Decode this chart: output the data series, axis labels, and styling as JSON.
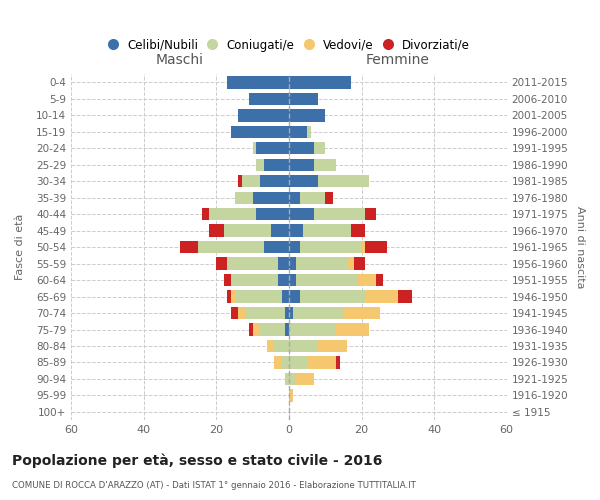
{
  "age_groups": [
    "100+",
    "95-99",
    "90-94",
    "85-89",
    "80-84",
    "75-79",
    "70-74",
    "65-69",
    "60-64",
    "55-59",
    "50-54",
    "45-49",
    "40-44",
    "35-39",
    "30-34",
    "25-29",
    "20-24",
    "15-19",
    "10-14",
    "5-9",
    "0-4"
  ],
  "birth_years": [
    "≤ 1915",
    "1916-1920",
    "1921-1925",
    "1926-1930",
    "1931-1935",
    "1936-1940",
    "1941-1945",
    "1946-1950",
    "1951-1955",
    "1956-1960",
    "1961-1965",
    "1966-1970",
    "1971-1975",
    "1976-1980",
    "1981-1985",
    "1986-1990",
    "1991-1995",
    "1996-2000",
    "2001-2005",
    "2006-2010",
    "2011-2015"
  ],
  "maschi": {
    "celibi": [
      0,
      0,
      0,
      0,
      0,
      1,
      1,
      2,
      3,
      3,
      7,
      5,
      9,
      10,
      8,
      7,
      9,
      16,
      14,
      11,
      17
    ],
    "coniugati": [
      0,
      0,
      1,
      2,
      4,
      7,
      11,
      13,
      13,
      14,
      18,
      13,
      13,
      5,
      5,
      2,
      1,
      0,
      0,
      0,
      0
    ],
    "vedovi": [
      0,
      0,
      0,
      2,
      2,
      2,
      2,
      1,
      0,
      0,
      0,
      0,
      0,
      0,
      0,
      0,
      0,
      0,
      0,
      0,
      0
    ],
    "divorziati": [
      0,
      0,
      0,
      0,
      0,
      1,
      2,
      1,
      2,
      3,
      5,
      4,
      2,
      0,
      1,
      0,
      0,
      0,
      0,
      0,
      0
    ]
  },
  "femmine": {
    "nubili": [
      0,
      0,
      0,
      0,
      0,
      0,
      1,
      3,
      2,
      2,
      3,
      4,
      7,
      3,
      8,
      7,
      7,
      5,
      10,
      8,
      17
    ],
    "coniugate": [
      0,
      0,
      2,
      5,
      8,
      13,
      14,
      18,
      17,
      14,
      17,
      13,
      14,
      7,
      14,
      6,
      3,
      1,
      0,
      0,
      0
    ],
    "vedove": [
      0,
      1,
      5,
      8,
      8,
      9,
      10,
      9,
      5,
      2,
      1,
      0,
      0,
      0,
      0,
      0,
      0,
      0,
      0,
      0,
      0
    ],
    "divorziate": [
      0,
      0,
      0,
      1,
      0,
      0,
      0,
      4,
      2,
      3,
      6,
      4,
      3,
      2,
      0,
      0,
      0,
      0,
      0,
      0,
      0
    ]
  },
  "colors": {
    "celibi": "#3d6fa8",
    "coniugati": "#c5d5a0",
    "vedovi": "#f5c76e",
    "divorziati": "#cc2222"
  },
  "xlim": 60,
  "title": "Popolazione per età, sesso e stato civile - 2016",
  "subtitle": "COMUNE DI ROCCA D'ARAZZO (AT) - Dati ISTAT 1° gennaio 2016 - Elaborazione TUTTITALIA.IT",
  "ylabel_left": "Fasce di età",
  "ylabel_right": "Anni di nascita",
  "legend_labels": [
    "Celibi/Nubili",
    "Coniugati/e",
    "Vedovi/e",
    "Divorziati/e"
  ]
}
